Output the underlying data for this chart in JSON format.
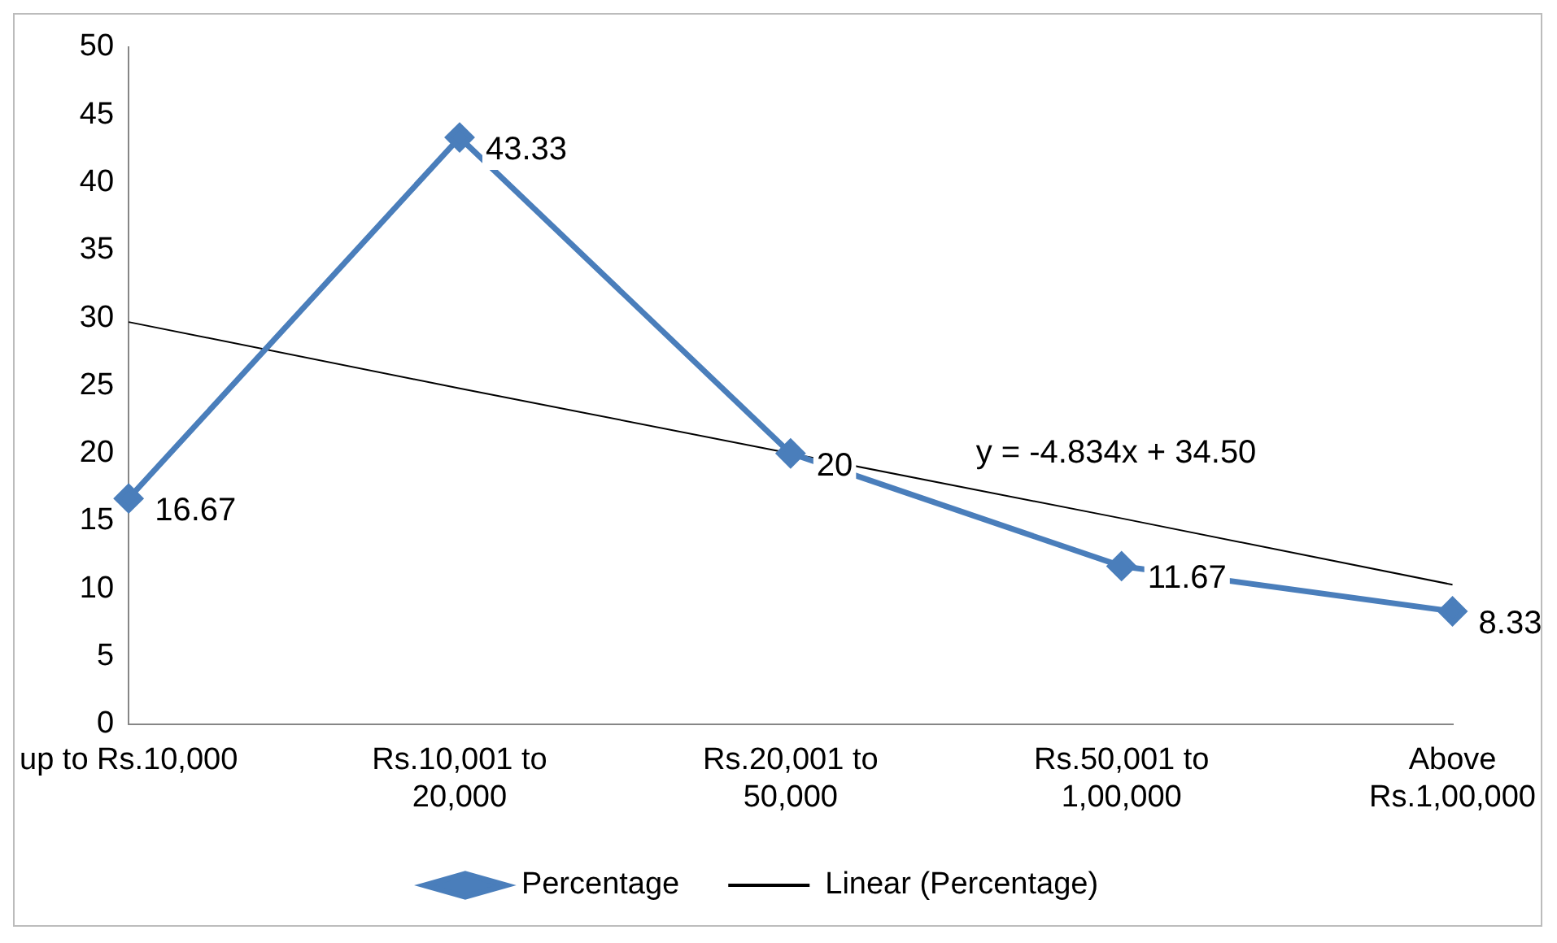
{
  "chart_data": {
    "type": "line",
    "categories": [
      "up to Rs.10,000",
      "Rs.10,001 to 20,000",
      "Rs.20,001 to 50,000",
      "Rs.50,001 to 1,00,000",
      "Above Rs.1,00,000"
    ],
    "series": [
      {
        "name": "Percentage",
        "color": "#4a7ebb",
        "marker": "diamond",
        "values": [
          16.67,
          43.33,
          20,
          11.67,
          8.33
        ],
        "value_labels": [
          "16.67",
          "43.33",
          "20",
          "11.67",
          "8.33"
        ]
      },
      {
        "name": "Linear (Percentage)",
        "type": "line",
        "color": "#000000",
        "marker": "none",
        "values": [
          29.7,
          24.8,
          20.0,
          15.2,
          10.3
        ]
      }
    ],
    "ylim": [
      0,
      50
    ],
    "yticks": [
      0,
      5,
      10,
      15,
      20,
      25,
      30,
      35,
      40,
      45,
      50
    ],
    "grid": false,
    "legend": "bottom",
    "annotations": [
      "y = -4.834x + 34.50"
    ]
  }
}
